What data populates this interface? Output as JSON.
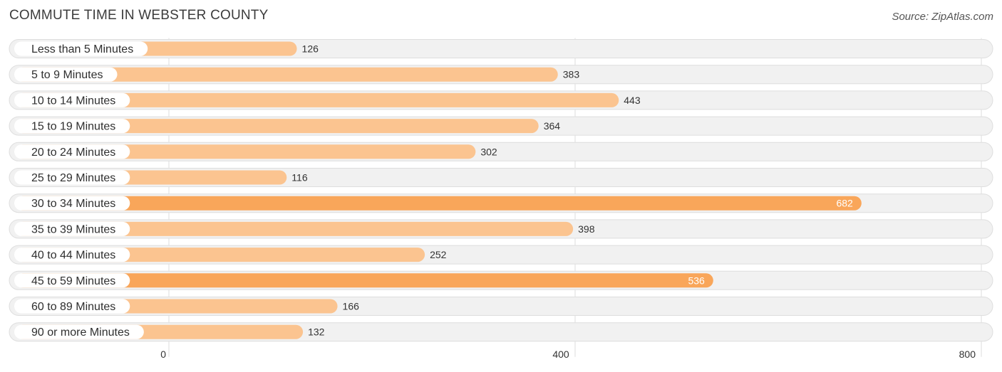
{
  "title": "COMMUTE TIME IN WEBSTER COUNTY",
  "source": "Source: ZipAtlas.com",
  "colors": {
    "bar_light": "#fbc490",
    "bar_strong": "#f9a65a",
    "row_bg": "#f1f1f1",
    "label_bg": "#ffffff"
  },
  "chart_data": {
    "type": "bar",
    "orientation": "horizontal",
    "categories": [
      "Less than 5 Minutes",
      "5 to 9 Minutes",
      "10 to 14 Minutes",
      "15 to 19 Minutes",
      "20 to 24 Minutes",
      "25 to 29 Minutes",
      "30 to 34 Minutes",
      "35 to 39 Minutes",
      "40 to 44 Minutes",
      "45 to 59 Minutes",
      "60 to 89 Minutes",
      "90 or more Minutes"
    ],
    "values": [
      126,
      383,
      443,
      364,
      302,
      116,
      682,
      398,
      252,
      536,
      166,
      132
    ],
    "value_labels": [
      "126",
      "383",
      "443",
      "364",
      "302",
      "116",
      "682",
      "398",
      "252",
      "536",
      "166",
      "132"
    ],
    "xlim": [
      0,
      800
    ],
    "xticks": [
      0,
      400,
      800
    ],
    "xtick_labels": [
      "0",
      "400",
      "800"
    ],
    "grid": true,
    "legend": "none"
  }
}
